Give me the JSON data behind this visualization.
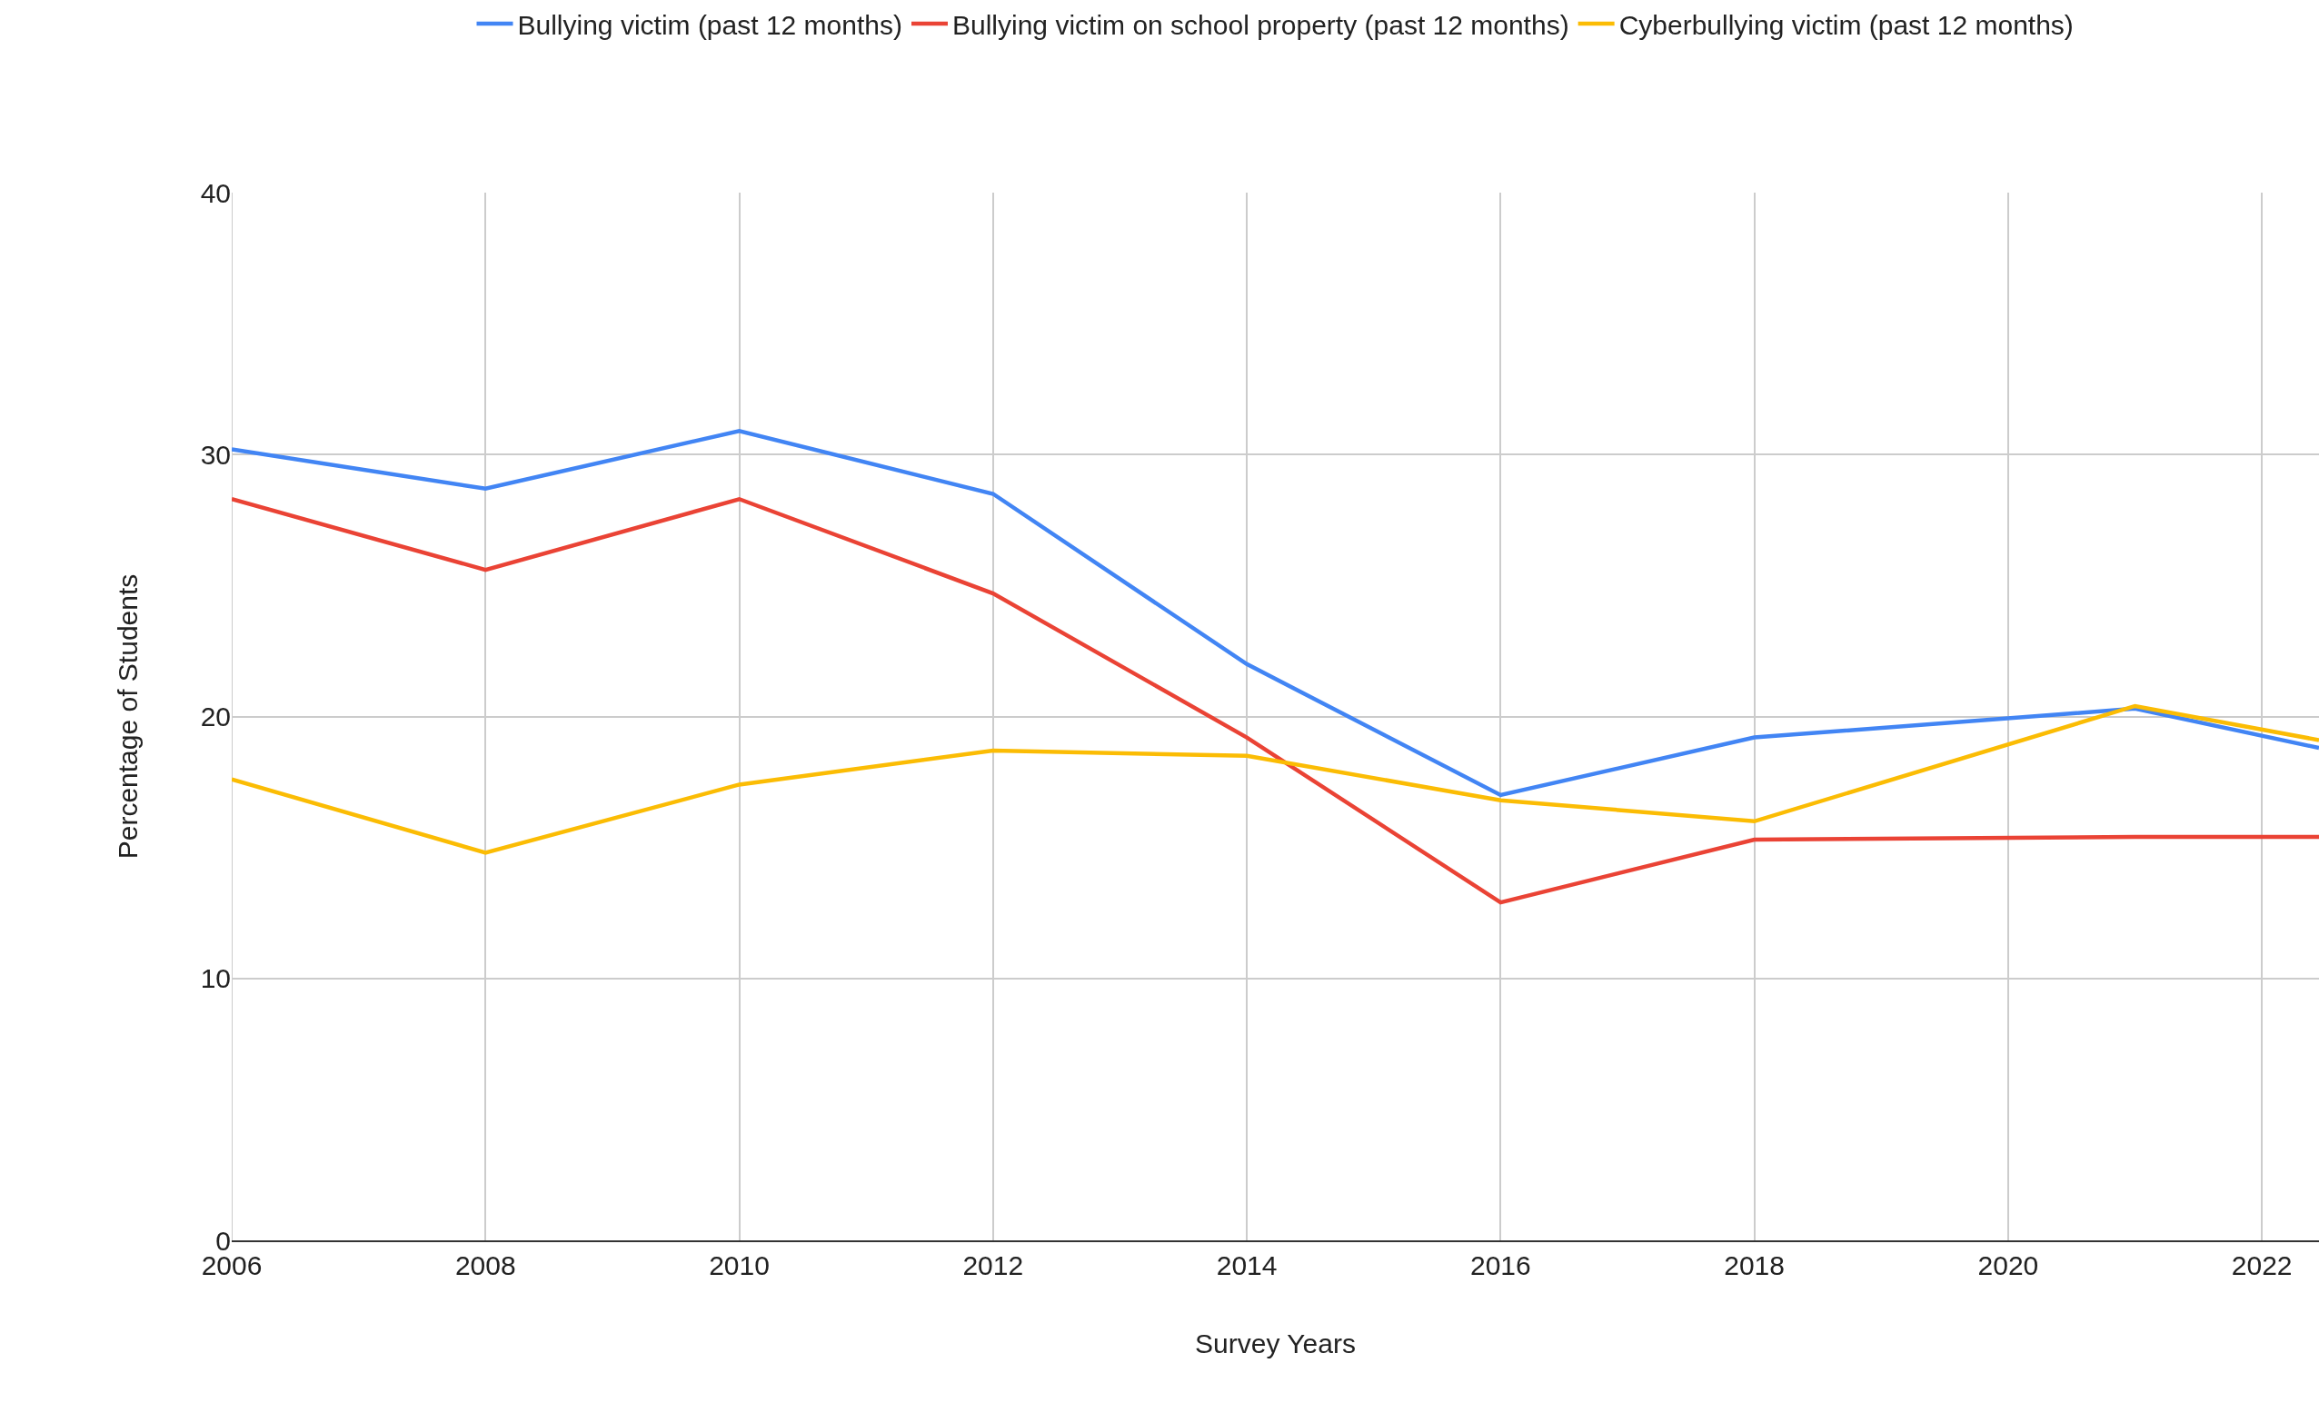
{
  "chart_data": {
    "type": "line",
    "xlabel": "Survey Years",
    "ylabel": "Percentage of Students",
    "x": [
      2006,
      2008,
      2010,
      2012,
      2014,
      2016,
      2018,
      2021,
      2022.45
    ],
    "series": [
      {
        "name": "Bullying victim (past 12 months)",
        "color": "#4285f4",
        "values": [
          30.2,
          28.7,
          30.9,
          28.5,
          22.0,
          17.0,
          19.2,
          20.3,
          18.8
        ]
      },
      {
        "name": "Bullying victim on school property (past 12 months)",
        "color": "#ea4335",
        "values": [
          28.3,
          25.6,
          28.3,
          24.7,
          19.2,
          12.9,
          15.3,
          15.4,
          15.4
        ]
      },
      {
        "name": "Cyberbullying victim (past 12 months)",
        "color": "#fbbc04",
        "values": [
          17.6,
          14.8,
          17.4,
          18.7,
          18.5,
          16.8,
          16.0,
          20.4,
          19.1
        ]
      }
    ],
    "xlim": [
      2006,
      2022.45
    ],
    "xticks": [
      2006,
      2008,
      2010,
      2012,
      2014,
      2016,
      2018,
      2020,
      2022
    ],
    "ylim": [
      0,
      40
    ],
    "yticks": [
      0,
      10,
      20,
      30,
      40
    ],
    "grid": true,
    "legend": "top",
    "marker": "none",
    "line_style": "solid"
  }
}
